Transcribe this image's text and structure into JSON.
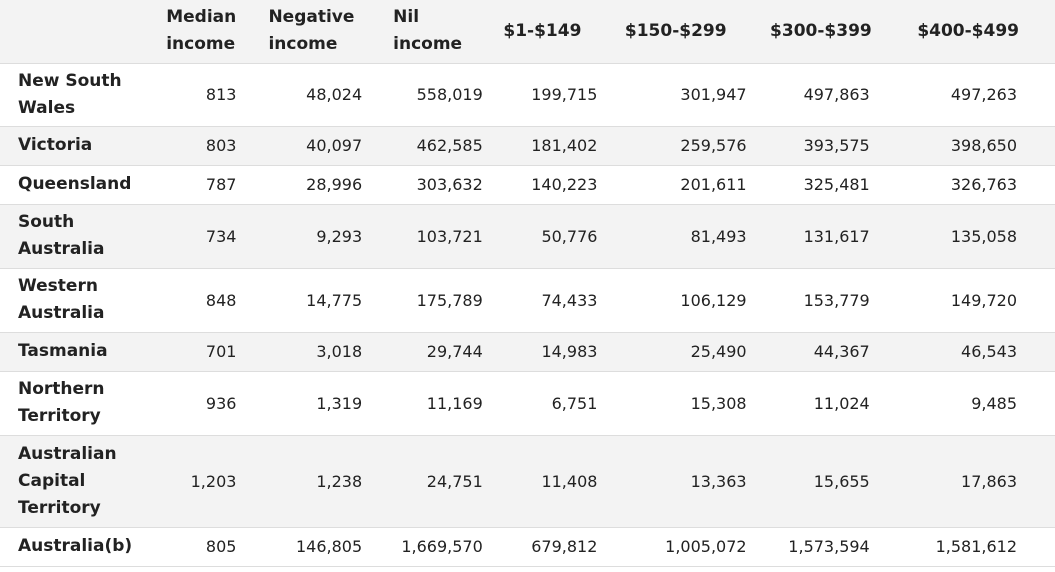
{
  "table": {
    "headers": [
      "",
      "Median income",
      "Negative income",
      "Nil income",
      "$1-$149",
      "$150-$299",
      "$300-$399",
      "$400-$499"
    ],
    "rows": [
      {
        "label": "New South Wales",
        "values": [
          "813",
          "48,024",
          "558,019",
          "199,715",
          "301,947",
          "497,863",
          "497,263"
        ]
      },
      {
        "label": "Victoria",
        "values": [
          "803",
          "40,097",
          "462,585",
          "181,402",
          "259,576",
          "393,575",
          "398,650"
        ]
      },
      {
        "label": "Queensland",
        "values": [
          "787",
          "28,996",
          "303,632",
          "140,223",
          "201,611",
          "325,481",
          "326,763"
        ]
      },
      {
        "label": "South Australia",
        "values": [
          "734",
          "9,293",
          "103,721",
          "50,776",
          "81,493",
          "131,617",
          "135,058"
        ]
      },
      {
        "label": "Western Australia",
        "values": [
          "848",
          "14,775",
          "175,789",
          "74,433",
          "106,129",
          "153,779",
          "149,720"
        ]
      },
      {
        "label": "Tasmania",
        "values": [
          "701",
          "3,018",
          "29,744",
          "14,983",
          "25,490",
          "44,367",
          "46,543"
        ]
      },
      {
        "label": "Northern Territory",
        "values": [
          "936",
          "1,319",
          "11,169",
          "6,751",
          "15,308",
          "11,024",
          "9,485"
        ]
      },
      {
        "label": "Australian Capital Territory",
        "values": [
          "1,203",
          "1,238",
          "24,751",
          "11,408",
          "13,363",
          "15,655",
          "17,863"
        ]
      },
      {
        "label": "Australia(b)",
        "values": [
          "805",
          "146,805",
          "1,669,570",
          "679,812",
          "1,005,072",
          "1,573,594",
          "1,581,612"
        ]
      }
    ]
  }
}
